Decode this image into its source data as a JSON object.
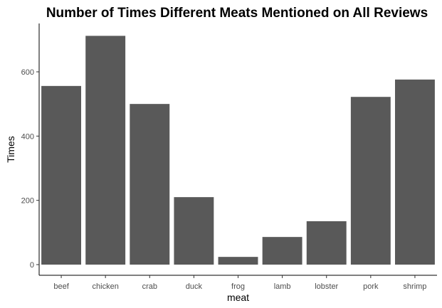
{
  "chart_data": {
    "type": "bar",
    "title": "Number of Times Different Meats Mentioned on All Reviews",
    "xlabel": "meat",
    "ylabel": "Times",
    "categories": [
      "beef",
      "chicken",
      "crab",
      "duck",
      "frog",
      "lamb",
      "lobster",
      "pork",
      "shrimp"
    ],
    "values": [
      556,
      712,
      500,
      210,
      24,
      86,
      135,
      522,
      576
    ],
    "ylim": [
      0,
      750
    ],
    "yticks": [
      0,
      200,
      400,
      600
    ],
    "grid": false,
    "legend": "none",
    "bar_color": "#595959",
    "axis_color": "#000000",
    "tick_label_color": "#4d4d4d"
  }
}
